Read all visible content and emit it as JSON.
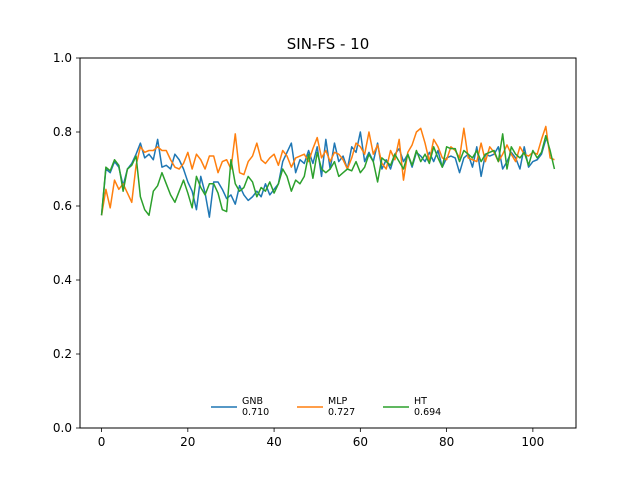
{
  "chart_data": {
    "type": "line",
    "title": "SIN-FS - 10",
    "xlabel": "",
    "ylabel": "",
    "xlim": [
      -5,
      110
    ],
    "ylim": [
      0.0,
      1.0
    ],
    "xticks": [
      0,
      20,
      40,
      60,
      80,
      100
    ],
    "xtick_labels": [
      "0",
      "20",
      "40",
      "60",
      "80",
      "100"
    ],
    "yticks": [
      0.0,
      0.2,
      0.4,
      0.6,
      0.8,
      1.0
    ],
    "ytick_labels": [
      "0.0",
      "0.2",
      "0.4",
      "0.6",
      "0.8",
      "1.0"
    ],
    "grid": false,
    "legend_position": "lower-center",
    "series": [
      {
        "name": "GNB",
        "score": "0.710",
        "color": "#1f77b4",
        "values": [
          0.575,
          0.7,
          0.69,
          0.72,
          0.705,
          0.655,
          0.7,
          0.715,
          0.74,
          0.77,
          0.73,
          0.74,
          0.725,
          0.78,
          0.705,
          0.71,
          0.7,
          0.74,
          0.725,
          0.7,
          0.665,
          0.64,
          0.59,
          0.68,
          0.635,
          0.57,
          0.665,
          0.665,
          0.645,
          0.62,
          0.63,
          0.605,
          0.655,
          0.63,
          0.615,
          0.625,
          0.64,
          0.625,
          0.66,
          0.63,
          0.645,
          0.66,
          0.72,
          0.745,
          0.77,
          0.69,
          0.725,
          0.715,
          0.75,
          0.715,
          0.76,
          0.68,
          0.78,
          0.7,
          0.77,
          0.72,
          0.735,
          0.7,
          0.76,
          0.745,
          0.8,
          0.72,
          0.745,
          0.72,
          0.77,
          0.7,
          0.725,
          0.7,
          0.74,
          0.755,
          0.72,
          0.74,
          0.705,
          0.745,
          0.735,
          0.72,
          0.745,
          0.72,
          0.75,
          0.705,
          0.73,
          0.735,
          0.73,
          0.69,
          0.73,
          0.74,
          0.705,
          0.76,
          0.68,
          0.74,
          0.735,
          0.74,
          0.76,
          0.7,
          0.72,
          0.745,
          0.73,
          0.7,
          0.76,
          0.705,
          0.72,
          0.725,
          0.74,
          0.78
        ]
      },
      {
        "name": "MLP",
        "score": "0.727",
        "color": "#ff7f0e",
        "values": [
          0.575,
          0.645,
          0.595,
          0.67,
          0.645,
          0.66,
          0.635,
          0.61,
          0.71,
          0.76,
          0.745,
          0.75,
          0.75,
          0.76,
          0.75,
          0.75,
          0.725,
          0.705,
          0.7,
          0.715,
          0.745,
          0.7,
          0.74,
          0.725,
          0.7,
          0.735,
          0.735,
          0.69,
          0.72,
          0.725,
          0.7,
          0.795,
          0.69,
          0.685,
          0.72,
          0.735,
          0.77,
          0.725,
          0.715,
          0.73,
          0.74,
          0.71,
          0.75,
          0.735,
          0.705,
          0.73,
          0.735,
          0.74,
          0.72,
          0.755,
          0.785,
          0.73,
          0.75,
          0.72,
          0.745,
          0.74,
          0.725,
          0.7,
          0.73,
          0.77,
          0.76,
          0.74,
          0.8,
          0.74,
          0.765,
          0.715,
          0.7,
          0.75,
          0.725,
          0.78,
          0.67,
          0.745,
          0.765,
          0.8,
          0.81,
          0.77,
          0.72,
          0.78,
          0.76,
          0.73,
          0.725,
          0.76,
          0.75,
          0.73,
          0.81,
          0.73,
          0.725,
          0.72,
          0.77,
          0.72,
          0.76,
          0.745,
          0.72,
          0.74,
          0.765,
          0.74,
          0.72,
          0.76,
          0.74,
          0.735,
          0.745,
          0.74,
          0.78,
          0.815,
          0.73,
          0.725
        ]
      },
      {
        "name": "HT",
        "score": "0.694",
        "color": "#2ca02c",
        "values": [
          0.575,
          0.705,
          0.695,
          0.725,
          0.71,
          0.64,
          0.7,
          0.71,
          0.735,
          0.625,
          0.59,
          0.575,
          0.64,
          0.655,
          0.69,
          0.66,
          0.63,
          0.61,
          0.64,
          0.67,
          0.635,
          0.595,
          0.68,
          0.65,
          0.63,
          0.66,
          0.66,
          0.635,
          0.59,
          0.585,
          0.725,
          0.66,
          0.64,
          0.65,
          0.68,
          0.665,
          0.625,
          0.65,
          0.64,
          0.665,
          0.635,
          0.66,
          0.7,
          0.68,
          0.64,
          0.67,
          0.66,
          0.68,
          0.74,
          0.675,
          0.745,
          0.7,
          0.69,
          0.7,
          0.72,
          0.68,
          0.69,
          0.7,
          0.695,
          0.72,
          0.69,
          0.705,
          0.74,
          0.72,
          0.665,
          0.73,
          0.72,
          0.71,
          0.74,
          0.72,
          0.7,
          0.74,
          0.71,
          0.75,
          0.72,
          0.74,
          0.715,
          0.76,
          0.73,
          0.705,
          0.76,
          0.755,
          0.755,
          0.72,
          0.75,
          0.74,
          0.73,
          0.75,
          0.72,
          0.74,
          0.745,
          0.75,
          0.72,
          0.795,
          0.7,
          0.76,
          0.74,
          0.73,
          0.745,
          0.71,
          0.75,
          0.73,
          0.745,
          0.79,
          0.75,
          0.7
        ]
      }
    ]
  }
}
